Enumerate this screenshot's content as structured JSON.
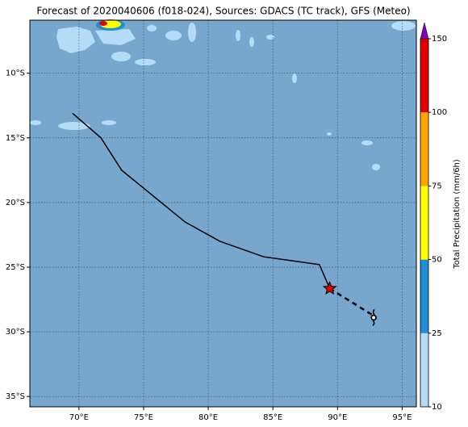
{
  "title": "Forecast of 2020040606 (f018-024), Sources: GDACS (TC track), GFS (Meteo)",
  "map": {
    "xlim": [
      66.2,
      96.1
    ],
    "ylim": [
      -35.8,
      -5.9
    ],
    "xticks": [
      {
        "value": 70,
        "label": "70°E"
      },
      {
        "value": 75,
        "label": "75°E"
      },
      {
        "value": 80,
        "label": "80°E"
      },
      {
        "value": 85,
        "label": "85°E"
      },
      {
        "value": 90,
        "label": "90°E"
      },
      {
        "value": 95,
        "label": "95°E"
      }
    ],
    "yticks": [
      {
        "value": -10,
        "label": "10°S"
      },
      {
        "value": -15,
        "label": "15°S"
      },
      {
        "value": -20,
        "label": "20°S"
      },
      {
        "value": -25,
        "label": "25°S"
      },
      {
        "value": -30,
        "label": "30°S"
      },
      {
        "value": -35,
        "label": "35°S"
      }
    ],
    "track": {
      "lon": [
        69.5,
        71.7,
        73.3,
        78.2,
        80.9,
        84.3,
        88.6,
        89.4
      ],
      "lat": [
        -13.1,
        -15.0,
        -17.5,
        -21.5,
        -23.0,
        -24.2,
        -24.8,
        -26.65
      ]
    },
    "forecast_track": {
      "lon": [
        89.4,
        92.7
      ],
      "lat": [
        -26.65,
        -28.7
      ]
    },
    "current_position": {
      "lon": 89.4,
      "lat": -26.65
    },
    "storm_symbol": {
      "lon": 92.8,
      "lat": -28.9
    }
  },
  "colorbar": {
    "label": "Total Precipitation (mm/6h)",
    "levels": [
      10,
      25,
      50,
      75,
      100,
      150
    ],
    "colors": [
      "#b5dcf7",
      "#1e8fd6",
      "#ffff00",
      "#ffa500",
      "#e00000"
    ],
    "extend_color": "#8000c0"
  }
}
